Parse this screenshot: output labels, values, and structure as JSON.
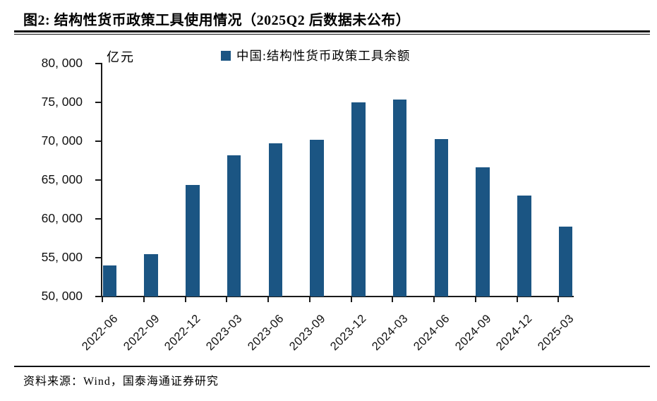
{
  "figure": {
    "title": "图2:  结构性货币政策工具使用情况（2025Q2 后数据未公布）",
    "source": "资料来源：Wind，国泰海通证券研究"
  },
  "chart_data": {
    "type": "bar",
    "title": "结构性货币政策工具使用情况",
    "unit_label": "亿元",
    "legend": [
      "中国:结构性货币政策工具余额"
    ],
    "legend_position": "top",
    "categories": [
      "2022-06",
      "2022-09",
      "2022-12",
      "2023-03",
      "2023-06",
      "2023-09",
      "2023-12",
      "2024-03",
      "2024-06",
      "2024-09",
      "2024-12",
      "2025-03"
    ],
    "values": [
      54000,
      55500,
      64400,
      68200,
      69700,
      70200,
      75000,
      75400,
      70300,
      66600,
      63000,
      59000
    ],
    "ylim": [
      50000,
      80000
    ],
    "ytick_step": 5000,
    "ytick_labels": [
      "50, 000",
      "55, 000",
      "60, 000",
      "65, 000",
      "70, 000",
      "75, 000",
      "80, 000"
    ],
    "grid": false,
    "bar_color": "#1B5583",
    "axis_color": "#1a1a1a"
  }
}
